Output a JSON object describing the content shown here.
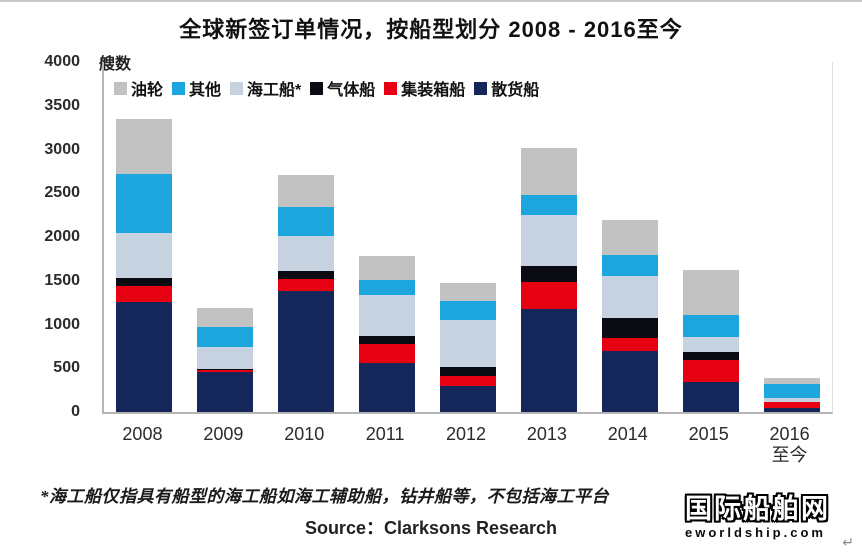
{
  "page": {
    "title": "全球新签订单情况，按船型划分 2008 - 2016至今",
    "unit_label": "艘数",
    "footnote": "*海工船仅指具有船型的海工船如海工辅助船，钻井船等，不包括海工平台",
    "source_label": "Source：Clarksons Research",
    "watermark": {
      "name_cn": "国际船舶网",
      "url_text": "eworldship.com",
      "return_mark": "↵"
    }
  },
  "chart_data": {
    "type": "bar",
    "stacked": true,
    "title": "全球新签订单情况，按船型划分 2008 - 2016至今",
    "ylabel": "艘数",
    "xlabel": "",
    "ylim": [
      0,
      4000
    ],
    "y_ticks": [
      0,
      500,
      1000,
      1500,
      2000,
      2500,
      3000,
      3500,
      4000
    ],
    "grid": false,
    "legend_position": "top",
    "categories": [
      "2008",
      "2009",
      "2010",
      "2011",
      "2012",
      "2013",
      "2014",
      "2015",
      "2016至今"
    ],
    "x_tick_labels": [
      [
        "2008"
      ],
      [
        "2009"
      ],
      [
        "2010"
      ],
      [
        "2011"
      ],
      [
        "2012"
      ],
      [
        "2013"
      ],
      [
        "2014"
      ],
      [
        "2015"
      ],
      [
        "2016",
        "至今"
      ]
    ],
    "series": [
      {
        "key": "bulk-carrier",
        "name": "散货船",
        "color": "#14265a",
        "values": [
          1260,
          460,
          1380,
          565,
          295,
          1180,
          700,
          340,
          50
        ]
      },
      {
        "key": "container-ship",
        "name": "集装箱船",
        "color": "#e60012",
        "values": [
          175,
          15,
          135,
          210,
          115,
          310,
          150,
          250,
          60
        ]
      },
      {
        "key": "gas-carrier",
        "name": "气体船",
        "color": "#0b0b13",
        "values": [
          95,
          15,
          95,
          95,
          100,
          180,
          220,
          95,
          10
        ]
      },
      {
        "key": "offshore-vessel",
        "name": "海工船*",
        "color": "#c7d2e0",
        "values": [
          520,
          250,
          405,
          465,
          540,
          580,
          480,
          170,
          40
        ]
      },
      {
        "key": "other",
        "name": "其他",
        "color": "#1ca6dd",
        "values": [
          670,
          230,
          330,
          175,
          215,
          230,
          250,
          255,
          160
        ]
      },
      {
        "key": "tanker",
        "name": "油轮",
        "color": "#c2c2c2",
        "values": [
          630,
          220,
          360,
          270,
          210,
          540,
          390,
          510,
          70
        ]
      }
    ],
    "totals": [
      3350,
      1190,
      2705,
      1780,
      1475,
      3020,
      2190,
      1620,
      390
    ]
  }
}
